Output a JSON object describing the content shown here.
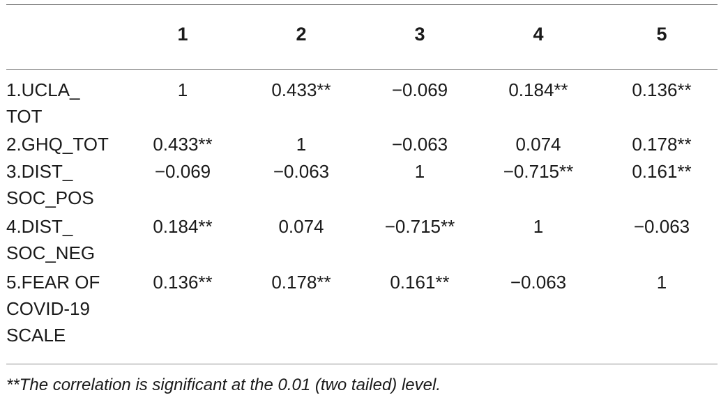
{
  "table": {
    "column_headers": [
      "1",
      "2",
      "3",
      "4",
      "5"
    ],
    "rows": [
      {
        "label": "1.UCLA_\nTOT",
        "cells": [
          "1",
          "0.433**",
          "−0.069",
          "0.184**",
          "0.136**"
        ]
      },
      {
        "label": "2.GHQ_TOT",
        "cells": [
          "0.433**",
          "1",
          "−0.063",
          "0.074",
          "0.178**"
        ]
      },
      {
        "label": "3.DIST_\nSOC_POS",
        "cells": [
          "−0.069",
          "−0.063",
          "1",
          "−0.715**",
          "0.161**"
        ]
      },
      {
        "label": "4.DIST_\nSOC_NEG",
        "cells": [
          "0.184**",
          "0.074",
          "−0.715**",
          "1",
          "−0.063"
        ]
      },
      {
        "label": "5.FEAR OF\nCOVID-19\nSCALE",
        "cells": [
          "0.136**",
          "0.178**",
          "0.161**",
          "−0.063",
          "1"
        ]
      }
    ]
  },
  "footnote": "**The correlation is significant at the 0.01 (two tailed) level."
}
